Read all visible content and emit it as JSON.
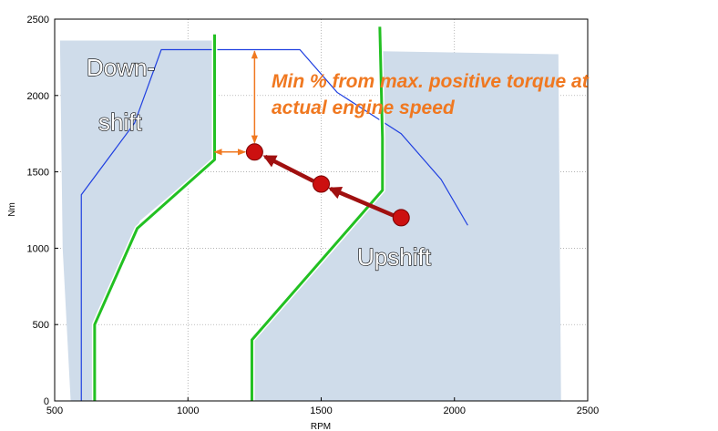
{
  "chart_data": {
    "type": "line",
    "xlabel": "RPM",
    "ylabel": "Nm",
    "xlim": [
      500,
      2500
    ],
    "ylim": [
      0,
      2500
    ],
    "xticks": [
      500,
      1000,
      1500,
      2000,
      2500
    ],
    "yticks": [
      0,
      500,
      1000,
      1500,
      2000,
      2500
    ],
    "grid": true,
    "colors": {
      "torque_curve": "#2040e0",
      "shift_line": "#22c022",
      "region_fill": "#cfdcea",
      "arrow": "#a01010",
      "point": "#cc1010",
      "annotation": "#f07820"
    },
    "regions": [
      {
        "name": "downshift-region",
        "points": [
          [
            520,
            2360
          ],
          [
            1100,
            2360
          ],
          [
            1100,
            1590
          ],
          [
            820,
            1180
          ],
          [
            655,
            520
          ],
          [
            655,
            0
          ],
          [
            560,
            0
          ],
          [
            530,
            1000
          ]
        ]
      },
      {
        "name": "upshift-region",
        "points": [
          [
            1730,
            2290
          ],
          [
            2390,
            2270
          ],
          [
            2400,
            0
          ],
          [
            1250,
            0
          ],
          [
            1250,
            420
          ],
          [
            1740,
            1410
          ]
        ]
      }
    ],
    "series": [
      {
        "id": "max-torque-curve",
        "x": [
          600,
          600,
          800,
          900,
          1420,
          1560,
          1800,
          1950,
          2050
        ],
        "y": [
          0,
          1350,
          1820,
          2300,
          2300,
          2020,
          1750,
          1450,
          1150
        ]
      },
      {
        "id": "downshift-line",
        "x": [
          1100,
          1100,
          810,
          650,
          650
        ],
        "y": [
          2400,
          1580,
          1130,
          500,
          0
        ]
      },
      {
        "id": "upshift-line",
        "x": [
          1720,
          1730,
          1730,
          1240,
          1240
        ],
        "y": [
          2450,
          1720,
          1380,
          400,
          0
        ]
      }
    ],
    "points": [
      {
        "x": 1250,
        "y": 1630
      },
      {
        "x": 1500,
        "y": 1420
      },
      {
        "x": 1800,
        "y": 1200
      }
    ],
    "arrows": [
      {
        "from": [
          1770,
          1215
        ],
        "to": [
          1535,
          1390
        ]
      },
      {
        "from": [
          1470,
          1440
        ],
        "to": [
          1290,
          1600
        ]
      }
    ],
    "orange_arrows": [
      {
        "from": [
          1250,
          2290
        ],
        "to": [
          1250,
          1690
        ],
        "double": true
      },
      {
        "from": [
          1100,
          1630
        ],
        "to": [
          1215,
          1630
        ],
        "double": true
      }
    ],
    "annotations": {
      "downshift_line1": "Down-",
      "downshift_line2": "shift",
      "upshift": "Upshift",
      "min_torque_line1": "Min % from max. positive torque at",
      "min_torque_line2": "actual engine speed"
    }
  }
}
